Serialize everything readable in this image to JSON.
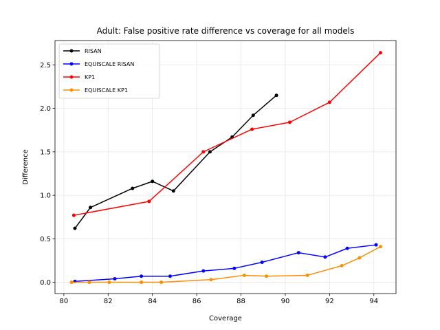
{
  "chart_data": {
    "type": "line",
    "title": "Adult: False positive rate difference vs coverage for all models",
    "xlabel": "Coverage",
    "ylabel": "Difference",
    "xlim": [
      79.6,
      95.0
    ],
    "ylim": [
      -0.13,
      2.78
    ],
    "xticks": [
      80,
      82,
      84,
      86,
      88,
      90,
      92,
      94
    ],
    "yticks": [
      0.0,
      0.5,
      1.0,
      1.5,
      2.0,
      2.5
    ],
    "grid": true,
    "legend_position": "top-left",
    "series": [
      {
        "name": "RISAN",
        "color": "#000000",
        "x": [
          80.5,
          81.2,
          83.1,
          84.0,
          84.95,
          86.6,
          87.6,
          88.55,
          89.6
        ],
        "y": [
          0.62,
          0.86,
          1.08,
          1.16,
          1.05,
          1.5,
          1.67,
          1.92,
          2.15
        ]
      },
      {
        "name": "EQUISCALE RISAN",
        "color": "#0000ff",
        "x": [
          80.5,
          82.3,
          83.5,
          84.8,
          86.3,
          87.7,
          88.95,
          90.6,
          91.8,
          92.8,
          94.1
        ],
        "y": [
          0.01,
          0.04,
          0.07,
          0.07,
          0.13,
          0.16,
          0.23,
          0.34,
          0.29,
          0.39,
          0.43
        ]
      },
      {
        "name": "KP1",
        "color": "#ff0000",
        "x": [
          80.45,
          83.85,
          86.3,
          88.5,
          90.2,
          92.0,
          94.3
        ],
        "y": [
          0.77,
          0.93,
          1.5,
          1.76,
          1.84,
          2.07,
          2.64
        ]
      },
      {
        "name": "EQUISCALE KP1",
        "color": "#ff8c00",
        "x": [
          80.35,
          81.15,
          82.05,
          83.5,
          84.4,
          86.65,
          88.15,
          89.15,
          91.0,
          92.55,
          93.35,
          94.3
        ],
        "y": [
          0.0,
          0.0,
          0.0,
          0.0,
          0.0,
          0.03,
          0.08,
          0.07,
          0.08,
          0.19,
          0.28,
          0.41
        ]
      }
    ]
  }
}
